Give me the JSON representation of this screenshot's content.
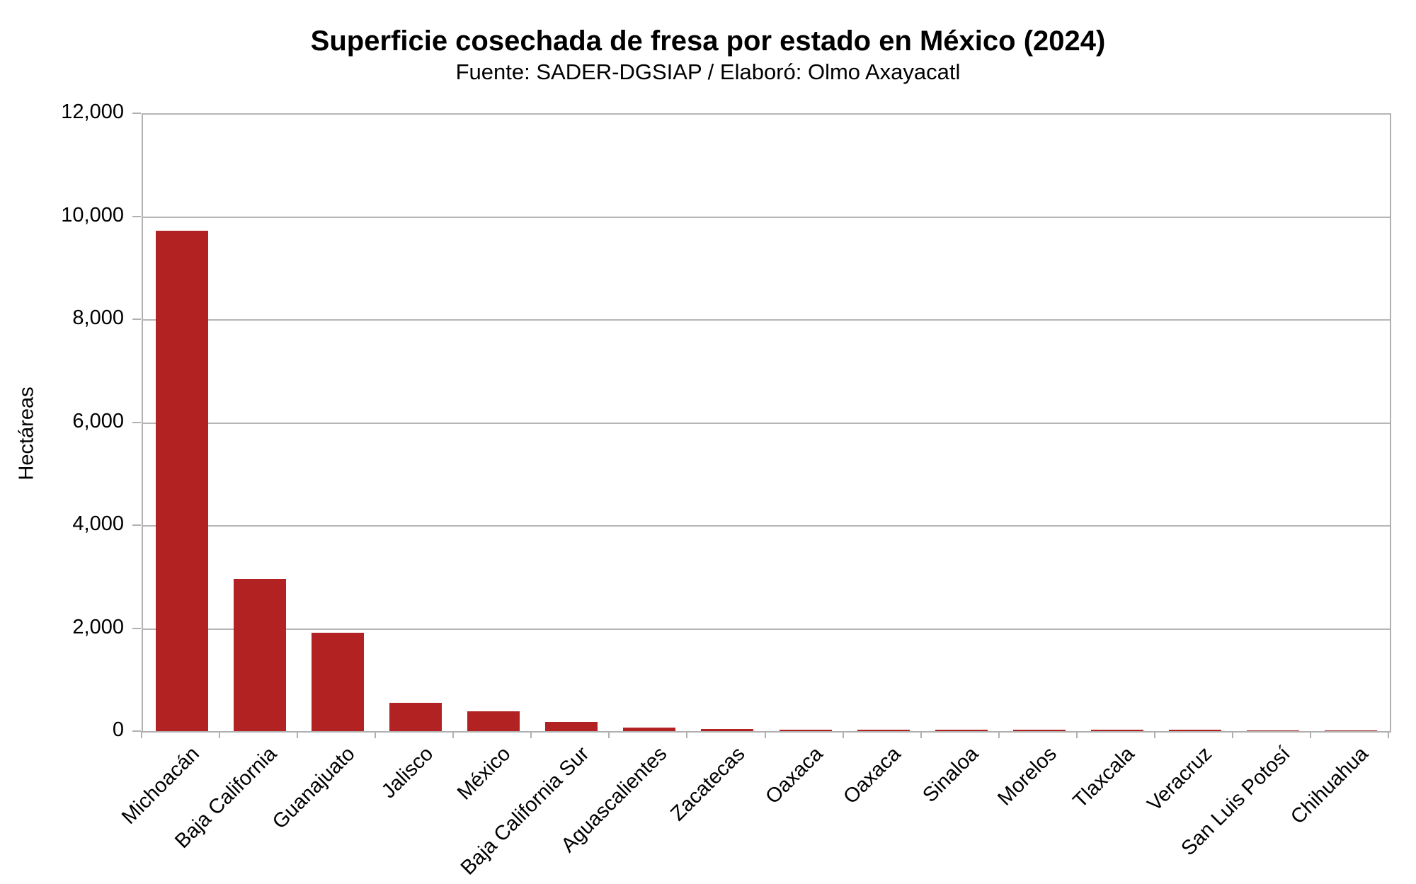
{
  "header": {
    "title": "Superficie cosechada de fresa por estado en México (2024)",
    "subtitle": "Fuente: SADER-DGSIAP / Elaboró: Olmo Axayacatl"
  },
  "chart_data": {
    "type": "bar",
    "title": "Superficie cosechada de fresa por estado en México (2024)",
    "subtitle": "Fuente: SADER-DGSIAP / Elaboró: Olmo Axayacatl",
    "xlabel": "",
    "ylabel": "Hectáreas",
    "categories": [
      "Michoacán",
      "Baja California",
      "Guanajuato",
      "Jalisco",
      "México",
      "Baja California Sur",
      "Aguascalientes",
      "Zacatecas",
      "Oaxaca",
      "Oaxaca",
      "Sinaloa",
      "Morelos",
      "Tlaxcala",
      "Veracruz",
      "San Luis Potosí",
      "Chihuahua"
    ],
    "values": [
      9720,
      2950,
      1910,
      550,
      390,
      180,
      75,
      37,
      32,
      30,
      28,
      28,
      27,
      25,
      18,
      16
    ],
    "ylim": [
      0,
      12000
    ],
    "ytick_step": 2000,
    "ytick_labels": [
      "0",
      "2,000",
      "4,000",
      "6,000",
      "8,000",
      "10,000",
      "12,000"
    ],
    "grid": true,
    "legend": "none",
    "bar_color": "#b22222",
    "axis_color": "#b0b0b0",
    "x_label_rotation_deg": 45
  }
}
